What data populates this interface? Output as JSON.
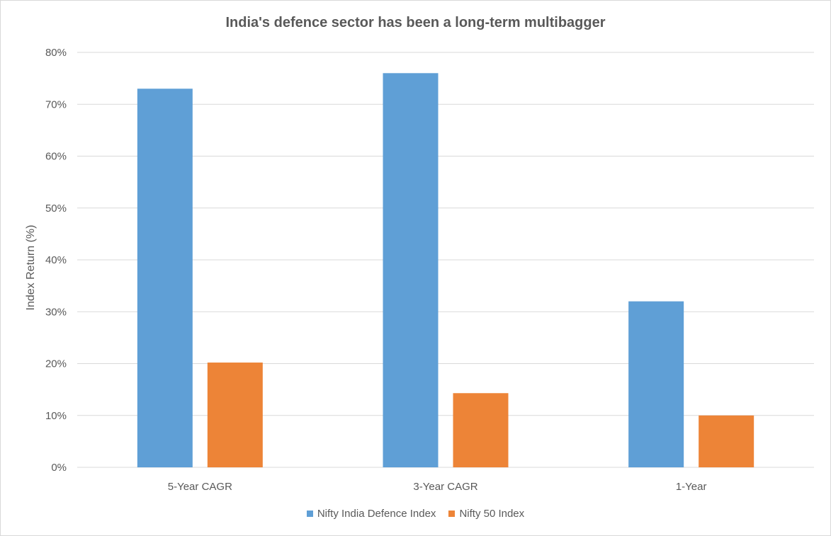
{
  "chart_data": {
    "type": "bar",
    "title": "India's defence sector has been a long-term multibagger",
    "xlabel": "",
    "ylabel": "Index Return (%)",
    "ylim": [
      0,
      80
    ],
    "yticks": [
      "0%",
      "10%",
      "20%",
      "30%",
      "40%",
      "50%",
      "60%",
      "70%",
      "80%"
    ],
    "categories": [
      "5-Year CAGR",
      "3-Year CAGR",
      "1-Year"
    ],
    "series": [
      {
        "name": "Nifty India Defence Index",
        "color": "#5f9fd6",
        "values": [
          73,
          76,
          32
        ]
      },
      {
        "name": "Nifty 50 Index",
        "color": "#ed8437",
        "values": [
          20.2,
          14.3,
          10
        ]
      }
    ],
    "grid": true,
    "legend": "bottom"
  }
}
